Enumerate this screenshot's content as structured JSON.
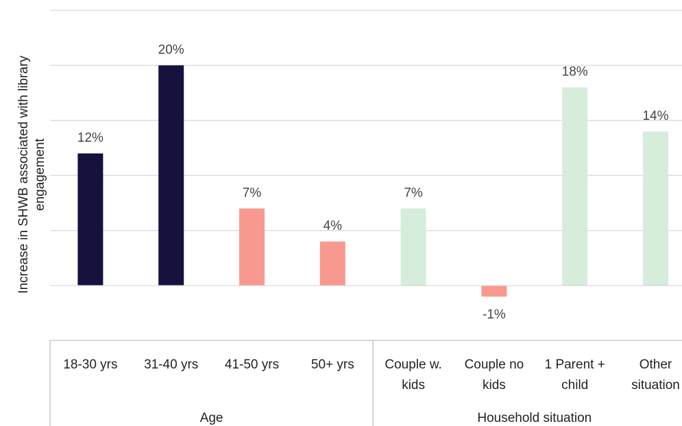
{
  "chart_data": {
    "type": "bar",
    "title": "",
    "ylabel": "Increase in SHWB associated with library engagement",
    "ylim": [
      -5,
      25
    ],
    "yticks": [
      -5,
      0,
      5,
      10,
      15,
      20,
      25
    ],
    "grid": true,
    "categories": [
      "18-30 yrs",
      "31-40 yrs",
      "41-50 yrs",
      "50+ yrs",
      "Couple w. kids",
      "Couple no kids",
      "1 Parent + child",
      "Other situation"
    ],
    "category_lines": [
      [
        "18-30 yrs"
      ],
      [
        "31-40 yrs"
      ],
      [
        "41-50 yrs"
      ],
      [
        "50+ yrs"
      ],
      [
        "Couple w.",
        "kids"
      ],
      [
        "Couple no",
        "kids"
      ],
      [
        "1 Parent +",
        "child"
      ],
      [
        "Other",
        "situation"
      ]
    ],
    "values": [
      12,
      20,
      7,
      4,
      7,
      -1,
      18,
      14
    ],
    "data_labels": [
      "12%",
      "20%",
      "7%",
      "4%",
      "7%",
      "-1%",
      "18%",
      "14%"
    ],
    "colors": [
      "#15123e",
      "#15123e",
      "#f8998f",
      "#f8998f",
      "#d6eddb",
      "#f8998f",
      "#d6eddb",
      "#d6eddb"
    ],
    "groups": [
      {
        "label": "Age",
        "categories": [
          "18-30 yrs",
          "31-40 yrs",
          "41-50 yrs",
          "50+ yrs"
        ]
      },
      {
        "label": "Household situation",
        "categories": [
          "Couple w. kids",
          "Couple no kids",
          "1 Parent + child",
          "Other situation"
        ]
      }
    ]
  }
}
